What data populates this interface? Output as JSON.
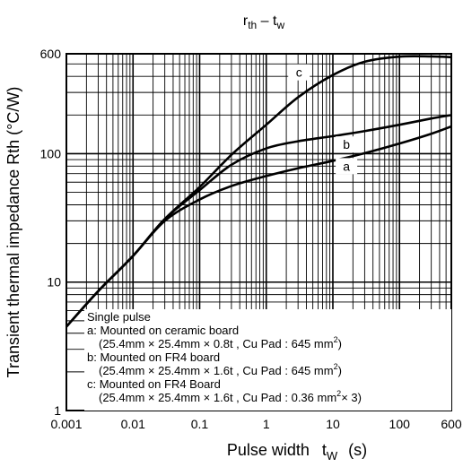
{
  "chart_data": {
    "type": "line",
    "title": "r",
    "title_sub1": "th",
    "title_mid": " – t",
    "title_sub2": "w",
    "xlabel": "Pulse width",
    "xlabel_symbol": "t",
    "xlabel_sub": "W",
    "xlabel_unit": "(s)",
    "ylabel": "Transient thermal impedance Rth (°C/W)",
    "x_scale": "log",
    "y_scale": "log",
    "xlim": [
      0.001,
      600
    ],
    "ylim": [
      1,
      600
    ],
    "grid": true,
    "x_ticks": [
      "0.001",
      "0.01",
      "0.1",
      "1",
      "10",
      "100",
      "600"
    ],
    "y_ticks": [
      "1",
      "10",
      "100",
      "600"
    ],
    "series": [
      {
        "name": "a",
        "x": [
          0.001,
          0.003,
          0.01,
          0.03,
          0.1,
          0.3,
          1,
          3,
          10,
          30,
          100,
          300,
          600
        ],
        "y": [
          4.5,
          8.5,
          16,
          30,
          44,
          56,
          67,
          77,
          88,
          101,
          120,
          143,
          163
        ]
      },
      {
        "name": "b",
        "x": [
          0.001,
          0.003,
          0.01,
          0.03,
          0.1,
          0.3,
          1,
          3,
          10,
          30,
          100,
          300,
          600
        ],
        "y": [
          4.5,
          8.5,
          16,
          31,
          52,
          82,
          110,
          125,
          137,
          150,
          168,
          188,
          200
        ]
      },
      {
        "name": "c",
        "x": [
          0.001,
          0.003,
          0.01,
          0.03,
          0.1,
          0.3,
          1,
          3,
          10,
          30,
          100,
          300,
          600
        ],
        "y": [
          4.5,
          8.5,
          16,
          31,
          55,
          98,
          168,
          275,
          410,
          520,
          570,
          572,
          565
        ]
      }
    ],
    "legend_note": {
      "title": "Single pulse",
      "lines": [
        "a: Mounted on ceramic board",
        "(25.4mm × 25.4mm × 0.8t , Cu Pad : 645 mm",
        "b: Mounted on FR4 board",
        "(25.4mm × 25.4mm × 1.6t , Cu Pad : 645 mm",
        "c: Mounted on FR4 Board",
        "(25.4mm × 25.4mm × 1.6t , Cu Pad : 0.36 mm"
      ],
      "sup": "2",
      "suffix1": ")",
      "suffix2": ")",
      "suffix3": "× 3)"
    }
  }
}
